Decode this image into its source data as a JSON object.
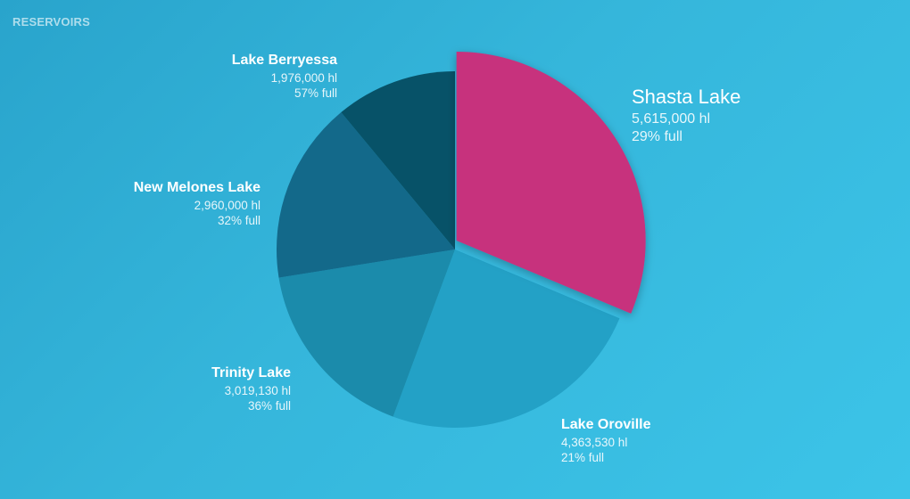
{
  "header": {
    "title": "RESERVOIRS"
  },
  "colors": {
    "selected": "#c7307d",
    "slices": [
      "#c7307d",
      "#23a1c6",
      "#1b8bab",
      "#13698a",
      "#075268"
    ]
  },
  "chart_data": {
    "type": "pie",
    "title": "RESERVOIRS",
    "slices": [
      {
        "name": "Shasta Lake",
        "value": 5615000,
        "volume_label": "5,615,000  hl",
        "percent_full": "29% full",
        "selected": true
      },
      {
        "name": "Lake Oroville",
        "value": 4363530,
        "volume_label": "4,363,530  hl",
        "percent_full": "21% full",
        "selected": false
      },
      {
        "name": "Trinity Lake",
        "value": 3019130,
        "volume_label": "3,019,130  hl",
        "percent_full": "36% full",
        "selected": false
      },
      {
        "name": "New Melones Lake",
        "value": 2960000,
        "volume_label": "2,960,000  hl",
        "percent_full": "32% full",
        "selected": false
      },
      {
        "name": "Lake Berryessa",
        "value": 1976000,
        "volume_label": "1,976,000  hl",
        "percent_full": "57% full",
        "selected": false
      }
    ]
  }
}
